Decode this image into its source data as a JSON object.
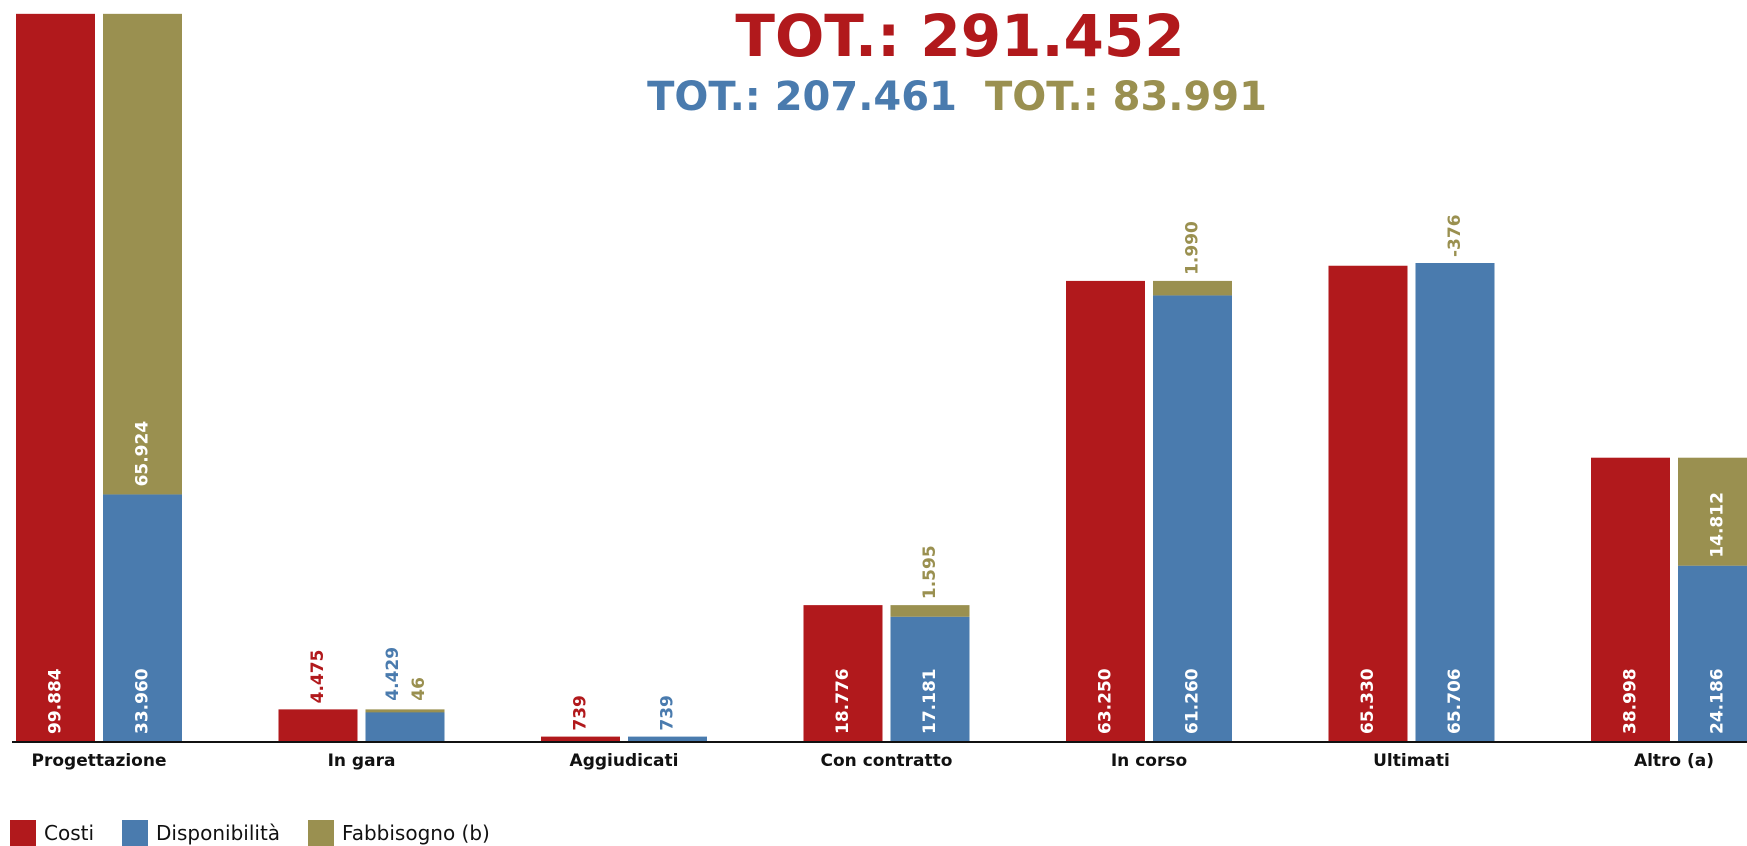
{
  "colors": {
    "costi": "#B1191C",
    "disponibilita": "#4A7BAE",
    "fabbisogno": "#9A9050",
    "axis": "#111111",
    "white": "#FFFFFF"
  },
  "totals": {
    "costi": "TOT.: 291.452",
    "disponibilita": "TOT.: 207.461",
    "fabbisogno": "TOT.: 83.991"
  },
  "legend": [
    {
      "label": "Costi",
      "color": "#B1191C"
    },
    {
      "label": "Disponibilità",
      "color": "#4A7BAE"
    },
    {
      "label": "Fabbisogno (b)",
      "color": "#9A9050"
    }
  ],
  "chart_data": {
    "type": "bar",
    "stacked_second_bar": true,
    "categories": [
      "Progettazione",
      "In gara",
      "Aggiudicati",
      "Con contratto",
      "In corso",
      "Ultimati",
      "Altro (a)"
    ],
    "series": [
      {
        "name": "Costi",
        "values": [
          99884,
          4475,
          739,
          18776,
          63250,
          65330,
          38998
        ],
        "labels": [
          "99.884",
          "4.475",
          "739",
          "18.776",
          "63.250",
          "65.330",
          "38.998"
        ]
      },
      {
        "name": "Disponibilità",
        "values": [
          33960,
          4429,
          739,
          17181,
          61260,
          65706,
          24186
        ],
        "labels": [
          "33.960",
          "4.429",
          "739",
          "17.181",
          "61.260",
          "65.706",
          "24.186"
        ]
      },
      {
        "name": "Fabbisogno (b)",
        "values": [
          65924,
          46,
          0,
          1595,
          1990,
          -376,
          14812
        ],
        "labels": [
          "65.924",
          "46",
          "",
          "1.595",
          "1.990",
          "-376",
          "14.812"
        ]
      }
    ],
    "legend_position": "bottom-left",
    "grid": false
  }
}
